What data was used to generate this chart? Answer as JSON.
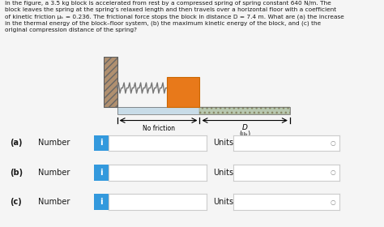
{
  "title_text": "In the figure, a 3.5 kg block is accelerated from rest by a compressed spring of spring constant 640 N/m. The\nblock leaves the spring at the spring’s relaxed length and then travels over a horizontal floor with a coefficient\nof kinetic friction μₖ = 0.236. The frictional force stops the block in distance D = 7.4 m. What are (a) the increase\nin the thermal energy of the block–floor system, (b) the maximum kinetic energy of the block, and (c) the\noriginal compression distance of the spring?",
  "bg_color": "#f5f5f5",
  "text_color": "#1a1a1a",
  "blue_btn_color": "#3399dd",
  "input_box_color": "#ffffff",
  "input_box_border": "#cccccc",
  "units_box_color": "#ffffff",
  "units_box_border": "#cccccc",
  "wall_face_color": "#a07850",
  "block_color": "#E8791A",
  "floor_color": "#b8d8e8",
  "spring_color": "#888888",
  "no_friction_label": "No friction",
  "D_label": "D",
  "mu_label": "(μₖ)",
  "row_labels": [
    "(a)",
    "(b)",
    "(c)"
  ]
}
